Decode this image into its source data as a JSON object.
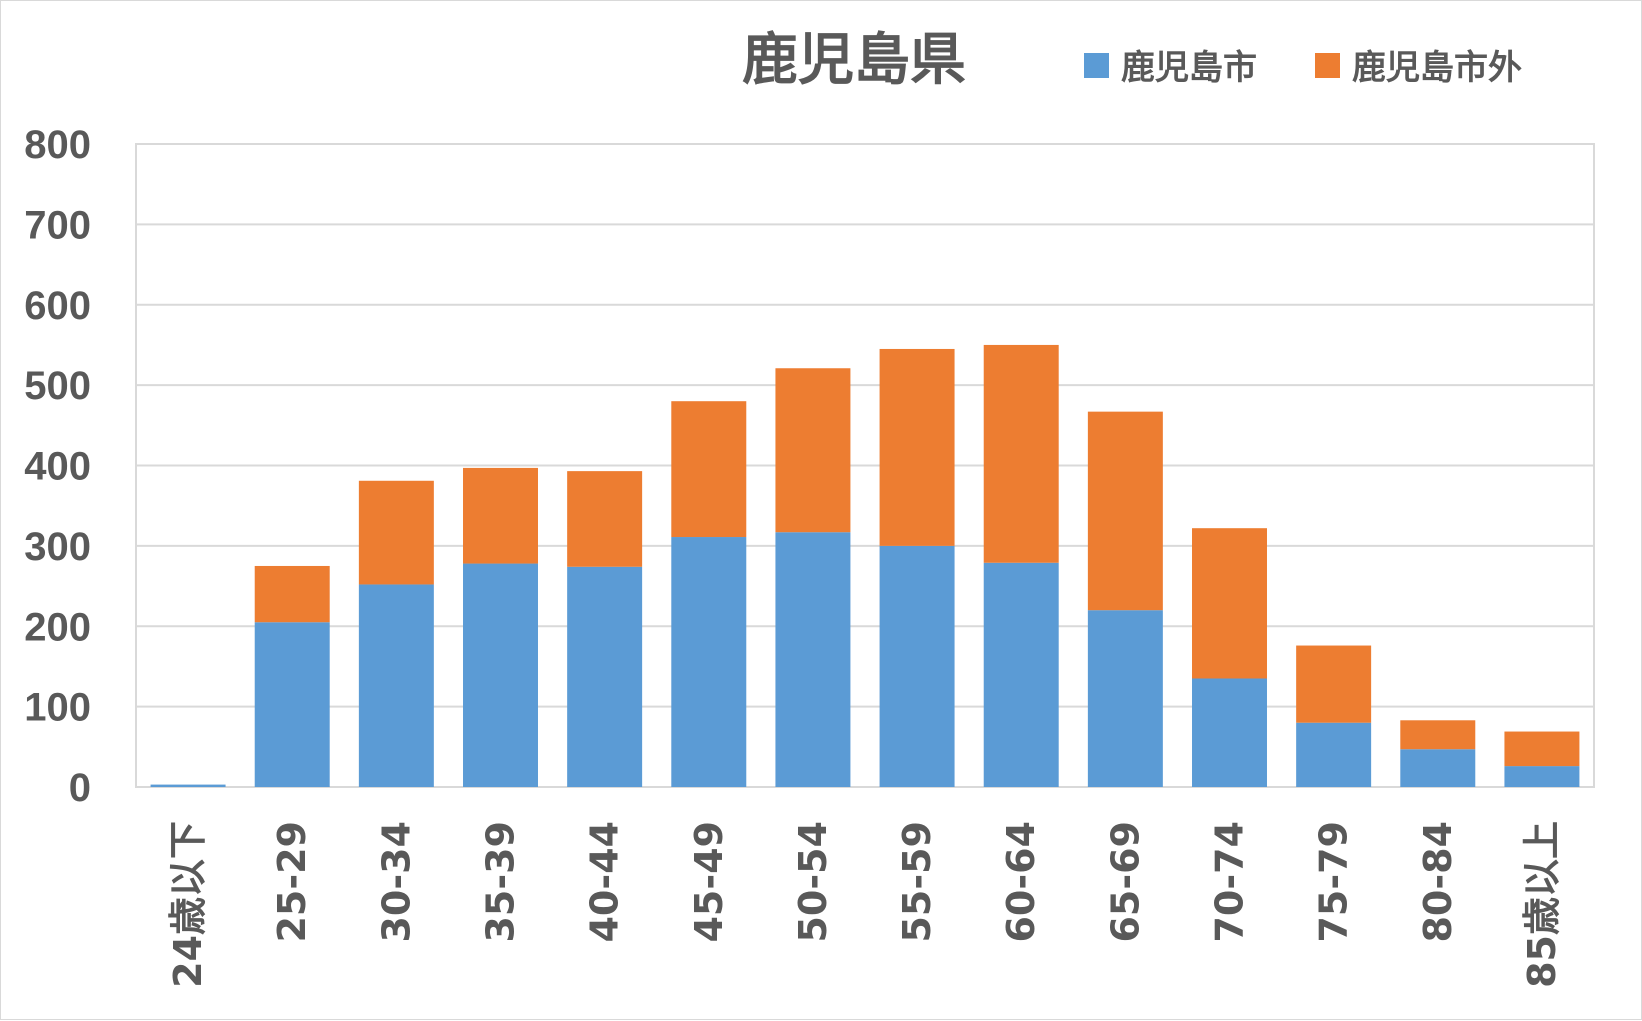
{
  "chart_data": {
    "type": "bar",
    "stacked": true,
    "title": "鹿児島県",
    "categories": [
      "24歳以下",
      "25-29",
      "30-34",
      "35-39",
      "40-44",
      "45-49",
      "50-54",
      "55-59",
      "60-64",
      "65-69",
      "70-74",
      "75-79",
      "80-84",
      "85歳以上"
    ],
    "series": [
      {
        "name": "鹿児島市",
        "color": "#5b9bd5",
        "values": [
          3,
          205,
          252,
          278,
          274,
          311,
          317,
          300,
          279,
          220,
          135,
          80,
          47,
          26
        ]
      },
      {
        "name": "鹿児島市外",
        "color": "#ed7d31",
        "values": [
          0,
          70,
          129,
          119,
          119,
          169,
          204,
          245,
          271,
          247,
          187,
          96,
          36,
          43
        ]
      }
    ],
    "ylim": [
      0,
      800
    ],
    "yticks": [
      0,
      100,
      200,
      300,
      400,
      500,
      600,
      700,
      800
    ],
    "grid": true,
    "legend_position": "top-right",
    "xlabel": "",
    "ylabel": ""
  }
}
